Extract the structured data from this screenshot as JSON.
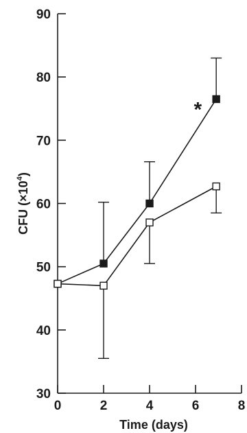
{
  "chart_data": {
    "type": "line",
    "xlabel": "Time (days)",
    "ylabel_main": "CFU (×10",
    "ylabel_exp": "4",
    "ylabel_tail": ")",
    "xlim": [
      0,
      8
    ],
    "ylim": [
      30,
      90
    ],
    "x_ticks": [
      0,
      2,
      4,
      6,
      8
    ],
    "y_ticks": [
      30,
      40,
      50,
      60,
      70,
      80,
      90
    ],
    "grid": false,
    "series": [
      {
        "marker": "filled-square",
        "x": [
          0,
          2,
          4,
          6.9
        ],
        "y": [
          47.3,
          50.5,
          60,
          76.5
        ],
        "err_high": [
          null,
          60.2,
          66.6,
          83
        ],
        "err_low": [
          null,
          null,
          null,
          null
        ]
      },
      {
        "marker": "open-square",
        "x": [
          0,
          2,
          4,
          6.9
        ],
        "y": [
          47.3,
          47,
          57,
          62.7
        ],
        "err_high": [
          null,
          null,
          null,
          null
        ],
        "err_low": [
          null,
          35.5,
          50.5,
          58.5
        ]
      }
    ],
    "annotations": [
      {
        "text": "*",
        "x": 6.1,
        "y": 75.5
      }
    ],
    "colors": {
      "ink": "#1a1a1a",
      "background": "#ffffff"
    }
  }
}
